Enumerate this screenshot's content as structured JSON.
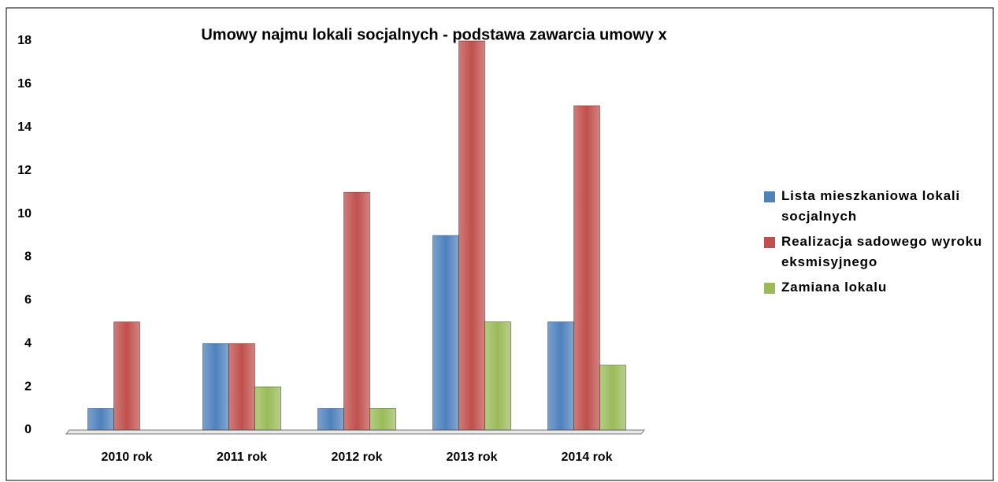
{
  "chart_data": {
    "type": "bar",
    "title": "Umowy najmu lokali socjalnych - podstawa zawarcia umowy x",
    "categories": [
      "2010 rok",
      "2011 rok",
      "2012 rok",
      "2013 rok",
      "2014 rok"
    ],
    "series": [
      {
        "name": "Lista mieszkaniowa lokali socjalnych",
        "color": "#4f81bd",
        "values": [
          1,
          4,
          1,
          9,
          5
        ]
      },
      {
        "name": "Realizacja sadowego wyroku eksmisyjnego",
        "color": "#c0504d",
        "values": [
          5,
          4,
          11,
          18,
          15
        ]
      },
      {
        "name": "Zamiana lokalu",
        "color": "#9bbb59",
        "values": [
          0,
          2,
          1,
          5,
          3
        ]
      }
    ],
    "ylim": [
      0,
      18
    ],
    "yticks": [
      0,
      2,
      4,
      6,
      8,
      10,
      12,
      14,
      16,
      18
    ],
    "grid": false,
    "legend": "right"
  }
}
